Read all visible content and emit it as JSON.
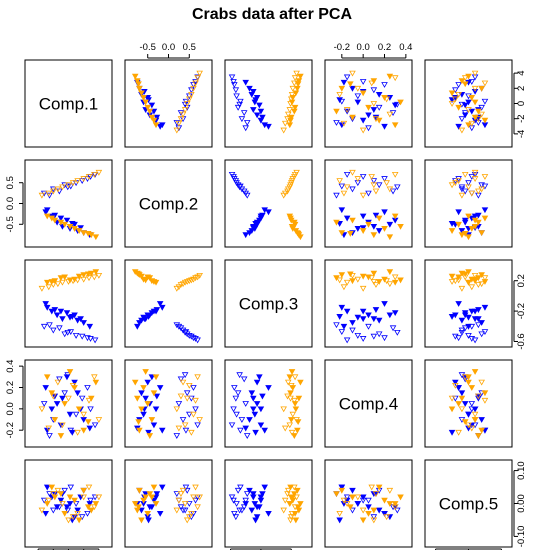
{
  "chart_data": {
    "type": "scatter",
    "title": "Crabs data after PCA",
    "variables": [
      "Comp.1",
      "Comp.2",
      "Comp.3",
      "Comp.4",
      "Comp.5"
    ],
    "ranges": [
      [
        -5.2,
        5.2
      ],
      [
        -0.95,
        0.95
      ],
      [
        -0.62,
        0.42
      ],
      [
        -0.32,
        0.42
      ],
      [
        -0.12,
        0.12
      ]
    ],
    "ticks": [
      [
        -4,
        -2,
        0,
        2,
        4
      ],
      [
        -0.5,
        0.0,
        0.5
      ],
      [
        -0.6,
        -0.2,
        0.2
      ],
      [
        -0.2,
        0.0,
        0.2,
        0.4
      ],
      [
        -0.1,
        0.0,
        0.1
      ]
    ],
    "tick_labels": [
      [
        "-4",
        "-2",
        "0",
        "2",
        "4"
      ],
      [
        "-0.5",
        "0.0",
        "0.5"
      ],
      [
        "-0.6",
        "-0.2",
        "0.2"
      ],
      [
        "-0.2",
        "0.0",
        "0.2",
        "0.4"
      ],
      [
        "-0.10",
        "0.00",
        "0.10"
      ]
    ],
    "series": [
      {
        "species": "B",
        "sex": "M",
        "color": "#0000ff",
        "marker": "filled-triangle-down",
        "points": [
          [
            -2.2,
            -0.3,
            -0.2,
            0.0,
            0.02
          ],
          [
            -1.5,
            -0.45,
            -0.25,
            0.05,
            -0.01
          ],
          [
            -0.8,
            -0.55,
            -0.3,
            0.1,
            0.03
          ],
          [
            0.2,
            -0.6,
            -0.28,
            -0.05,
            0.0
          ],
          [
            1.2,
            -0.65,
            -0.32,
            0.15,
            -0.02
          ],
          [
            2.0,
            -0.7,
            -0.35,
            -0.1,
            0.04
          ],
          [
            -3.0,
            -0.2,
            -0.1,
            0.2,
            -0.03
          ],
          [
            -1.0,
            -0.35,
            -0.2,
            -0.15,
            0.01
          ],
          [
            0.8,
            -0.5,
            -0.25,
            0.25,
            -0.04
          ],
          [
            -2.8,
            -0.15,
            -0.15,
            -0.2,
            0.05
          ],
          [
            1.6,
            -0.58,
            -0.3,
            0.0,
            0.02
          ],
          [
            -0.2,
            -0.4,
            -0.22,
            0.3,
            -0.01
          ],
          [
            2.8,
            -0.75,
            -0.4,
            -0.18,
            0.0
          ],
          [
            -1.8,
            -0.28,
            -0.18,
            0.12,
            0.03
          ],
          [
            0.5,
            -0.48,
            -0.27,
            -0.22,
            -0.05
          ]
        ]
      },
      {
        "species": "B",
        "sex": "F",
        "color": "#0000ff",
        "marker": "open-triangle-down",
        "points": [
          [
            -3.2,
            0.25,
            -0.4,
            0.05,
            0.01
          ],
          [
            -2.0,
            0.35,
            -0.45,
            -0.1,
            -0.02
          ],
          [
            -0.5,
            0.45,
            -0.5,
            0.15,
            0.04
          ],
          [
            1.0,
            0.5,
            -0.52,
            -0.05,
            0.0
          ],
          [
            2.5,
            0.6,
            -0.55,
            0.2,
            -0.03
          ],
          [
            3.5,
            0.7,
            -0.58,
            -0.15,
            0.02
          ],
          [
            -1.2,
            0.3,
            -0.42,
            0.28,
            -0.01
          ],
          [
            0.3,
            0.42,
            -0.47,
            -0.2,
            0.05
          ],
          [
            1.8,
            0.55,
            -0.53,
            0.1,
            -0.04
          ],
          [
            -2.5,
            0.2,
            -0.38,
            -0.25,
            0.03
          ],
          [
            2.9,
            0.65,
            -0.56,
            0.0,
            0.01
          ],
          [
            -0.1,
            0.4,
            -0.48,
            0.32,
            -0.02
          ]
        ]
      },
      {
        "species": "O",
        "sex": "M",
        "color": "#ffa500",
        "marker": "filled-triangle-down",
        "points": [
          [
            -1.8,
            -0.4,
            0.2,
            -0.1,
            0.02
          ],
          [
            -0.5,
            -0.5,
            0.25,
            0.05,
            -0.03
          ],
          [
            0.8,
            -0.6,
            0.22,
            0.2,
            0.01
          ],
          [
            2.0,
            -0.7,
            0.28,
            -0.2,
            0.04
          ],
          [
            3.0,
            -0.75,
            0.3,
            0.1,
            -0.02
          ],
          [
            -2.8,
            -0.3,
            0.18,
            0.3,
            0.0
          ],
          [
            -1.0,
            -0.45,
            0.24,
            -0.25,
            0.03
          ],
          [
            1.4,
            -0.65,
            0.26,
            0.0,
            -0.05
          ],
          [
            0.2,
            -0.55,
            0.21,
            0.35,
            0.02
          ],
          [
            2.6,
            -0.72,
            0.29,
            -0.12,
            -0.01
          ],
          [
            -2.2,
            -0.35,
            0.19,
            0.15,
            0.05
          ],
          [
            3.6,
            -0.8,
            0.32,
            0.25,
            0.0
          ]
        ]
      },
      {
        "species": "O",
        "sex": "F",
        "color": "#ffa500",
        "marker": "open-triangle-down",
        "points": [
          [
            -3.5,
            0.2,
            0.1,
            0.0,
            -0.02
          ],
          [
            -2.0,
            0.3,
            0.15,
            0.12,
            0.03
          ],
          [
            -0.8,
            0.4,
            0.18,
            -0.15,
            0.0
          ],
          [
            0.6,
            0.5,
            0.2,
            0.22,
            -0.04
          ],
          [
            2.0,
            0.6,
            0.22,
            -0.05,
            0.02
          ],
          [
            3.4,
            0.7,
            0.25,
            0.3,
            -0.01
          ],
          [
            -1.4,
            0.35,
            0.16,
            0.25,
            0.04
          ],
          [
            1.2,
            0.55,
            0.21,
            -0.22,
            -0.03
          ],
          [
            -2.6,
            0.25,
            0.12,
            -0.18,
            0.01
          ],
          [
            2.7,
            0.65,
            0.24,
            0.08,
            0.05
          ],
          [
            0.0,
            0.45,
            0.19,
            0.1,
            -0.05
          ],
          [
            4.0,
            0.75,
            0.27,
            -0.1,
            0.02
          ]
        ]
      }
    ]
  }
}
